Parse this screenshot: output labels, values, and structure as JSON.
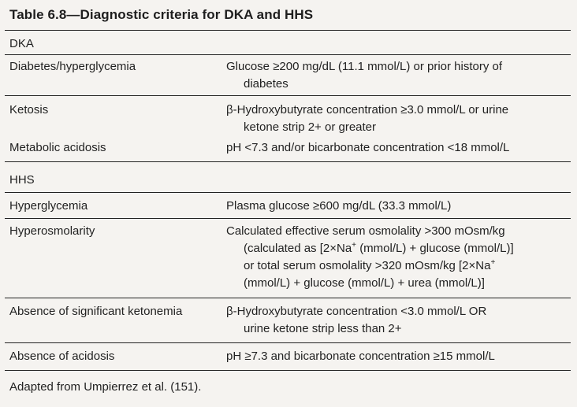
{
  "table": {
    "title": "Table 6.8—Diagnostic criteria for DKA and HHS",
    "dka": {
      "heading": "DKA",
      "rows": [
        {
          "criterion": "Diabetes/hyperglycemia",
          "lines": [
            "Glucose ≥200 mg/dL (11.1 mmol/L) or prior history of",
            "diabetes"
          ]
        },
        {
          "criterion": "Ketosis",
          "lines": [
            "β-Hydroxybutyrate concentration ≥3.0 mmol/L or urine",
            "ketone strip 2+ or greater"
          ]
        },
        {
          "criterion": "Metabolic acidosis",
          "lines": [
            "pH <7.3 and/or bicarbonate concentration <18 mmol/L"
          ]
        }
      ]
    },
    "hhs": {
      "heading": "HHS",
      "rows": [
        {
          "criterion": "Hyperglycemia",
          "lines": [
            "Plasma glucose ≥600 mg/dL (33.3 mmol/L)"
          ]
        },
        {
          "criterion": "Hyperosmolarity",
          "lines": [
            "Calculated effective serum osmolality >300 mOsm/kg",
            "(calculated as [2×Na",
            "(mmol/L) + glucose (mmol/L)]",
            "or total serum osmolality >320 mOsm/kg [2×Na",
            "(mmol/L) + glucose (mmol/L) + urea (mmol/L)]"
          ],
          "superscript": "+"
        },
        {
          "criterion": "Absence of significant ketonemia",
          "lines": [
            "β-Hydroxybutyrate concentration <3.0 mmol/L OR",
            "urine ketone strip less than 2+"
          ]
        },
        {
          "criterion": "Absence of acidosis",
          "lines": [
            "pH ≥7.3 and bicarbonate concentration ≥15 mmol/L"
          ]
        }
      ]
    },
    "footnote": "Adapted from Umpierrez et al. (151)."
  }
}
